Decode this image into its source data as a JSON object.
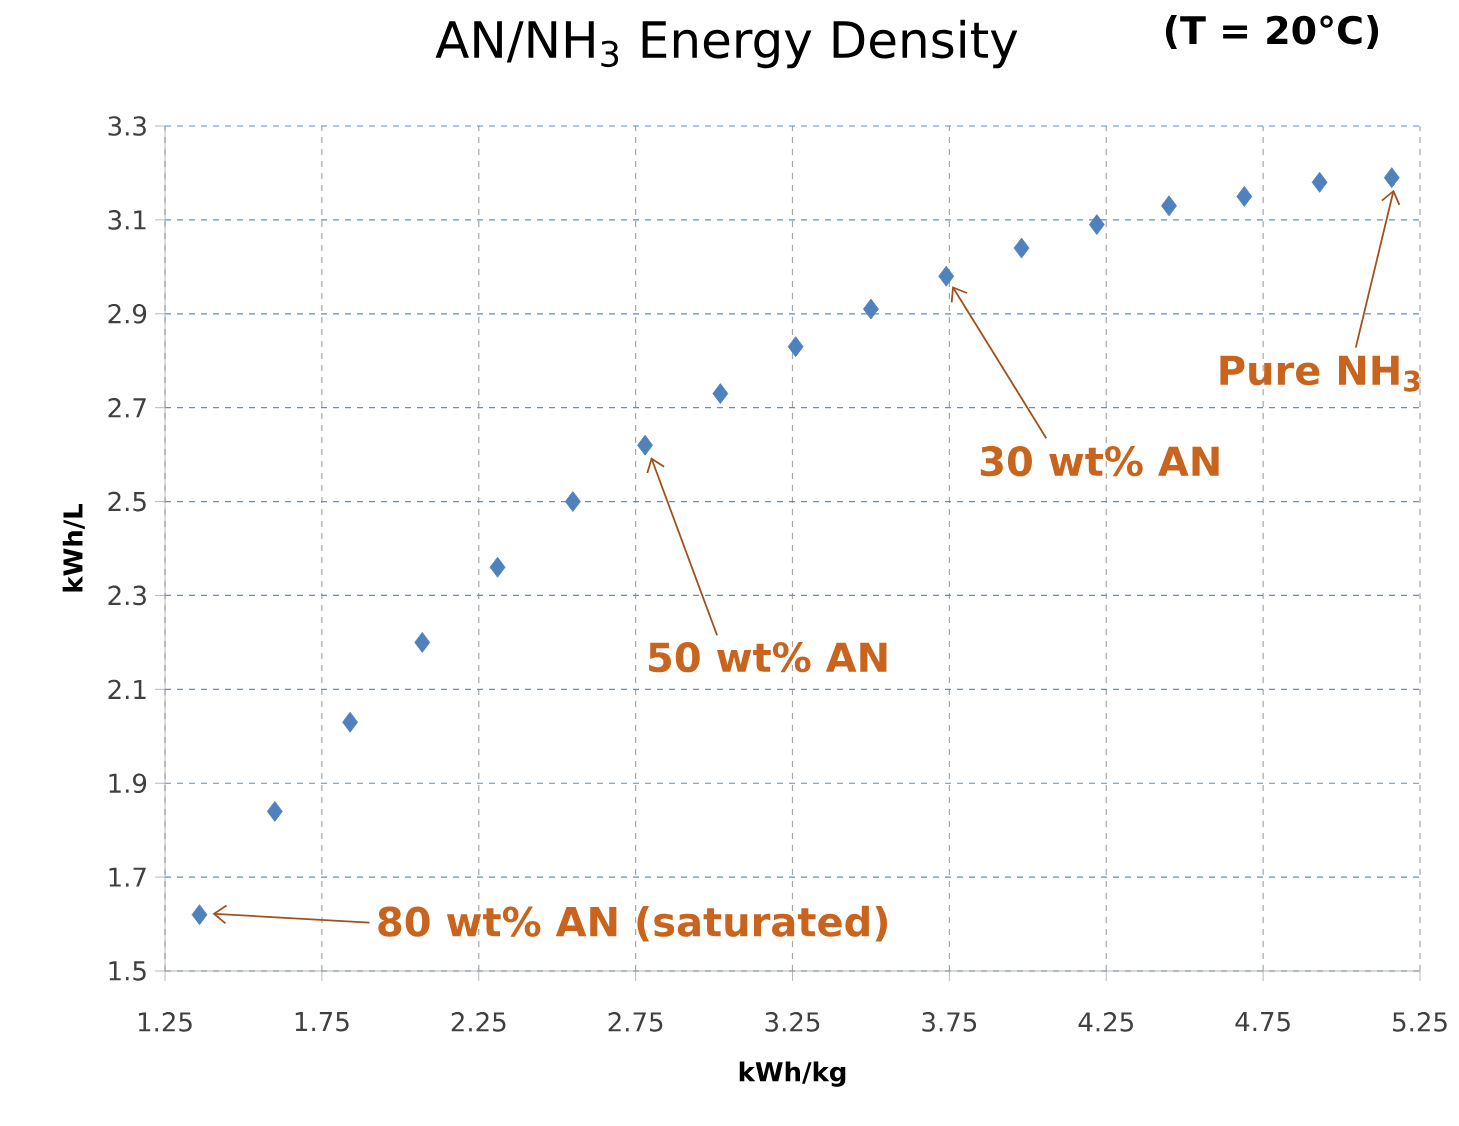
{
  "chart_data": {
    "type": "scatter",
    "title": "AN/NH$_{3}$ Energy Density",
    "subtitle": "(T = 20°C)",
    "xlabel": "kWh/kg",
    "ylabel": "kWh/L",
    "x": [
      1.36,
      1.6,
      1.84,
      2.07,
      2.31,
      2.55,
      2.78,
      3.02,
      3.26,
      3.5,
      3.74,
      3.98,
      4.22,
      4.45,
      4.69,
      4.93,
      5.16
    ],
    "values": [
      1.62,
      1.84,
      2.03,
      2.2,
      2.36,
      2.5,
      2.62,
      2.73,
      2.83,
      2.91,
      2.98,
      3.04,
      3.09,
      3.13,
      3.15,
      3.18,
      3.19
    ],
    "color": "#4f81bd",
    "marker": "diamond",
    "grid": true,
    "xlim": [
      1.25,
      5.25
    ],
    "xticks": [
      1.25,
      1.75,
      2.25,
      2.75,
      3.25,
      3.75,
      4.25,
      4.75,
      5.25
    ],
    "ylim": [
      1.5,
      3.3
    ],
    "yticks": [
      1.5,
      1.7,
      1.9,
      2.1,
      2.3,
      2.5,
      2.7,
      2.9,
      3.1,
      3.3
    ],
    "annotations": [
      "80 wt% AN (saturated)",
      "50 wt% AN",
      "30 wt% AN",
      "Pure NH$_{3}$"
    ]
  }
}
